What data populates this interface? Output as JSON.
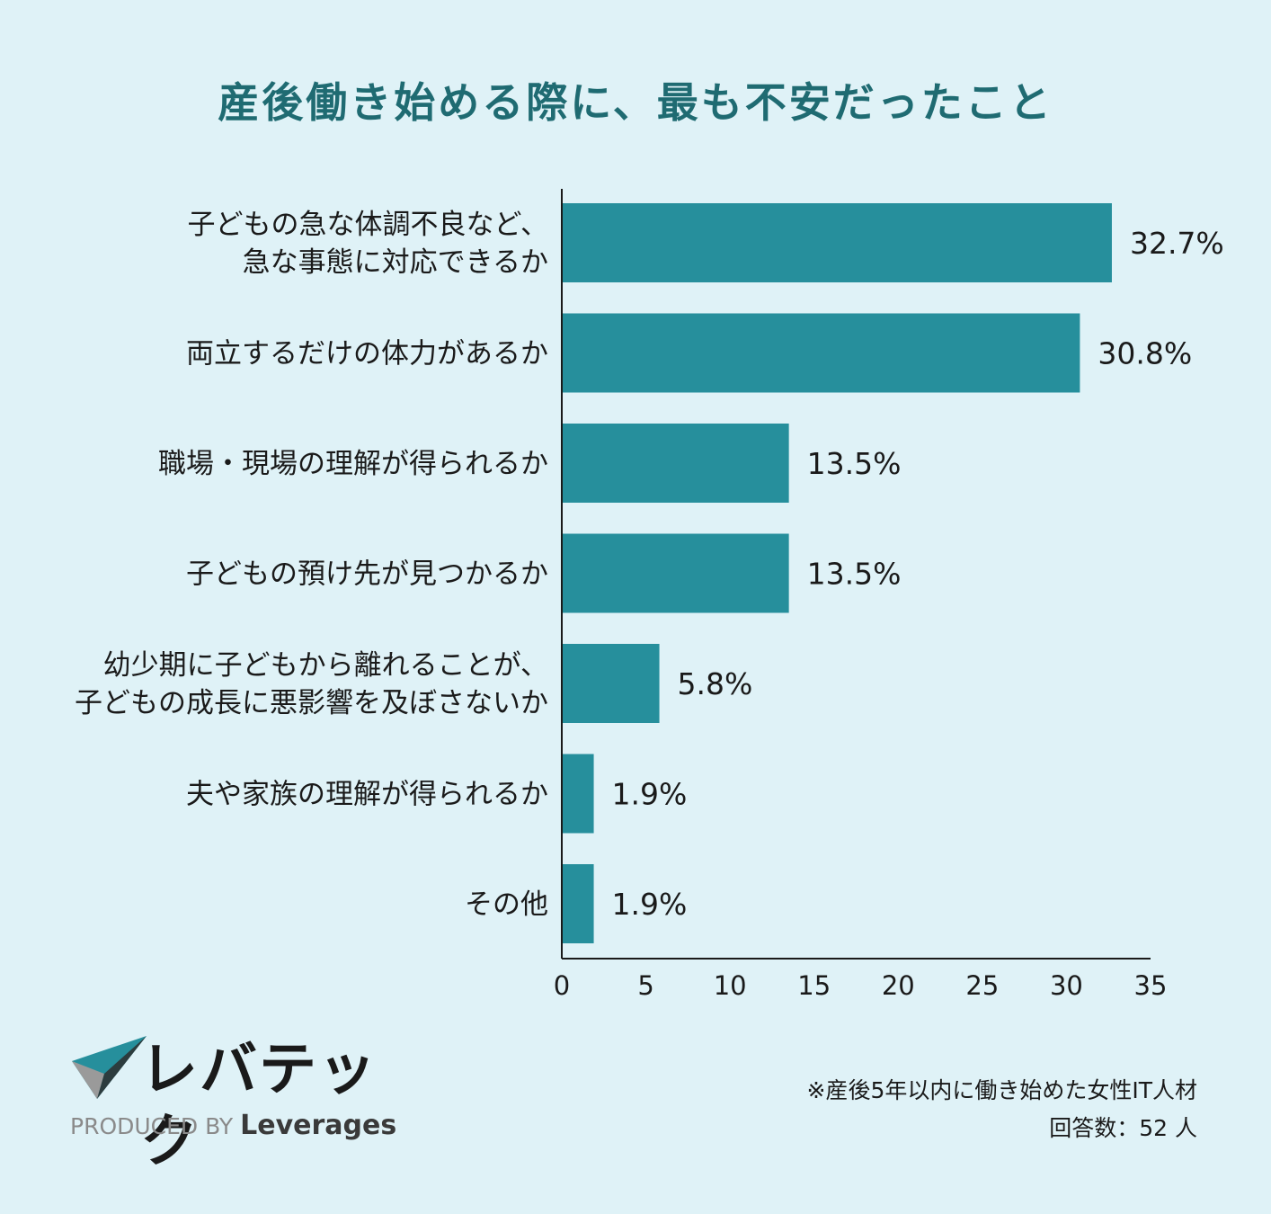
{
  "title": "産後働き始める際に、最も不安だったこと",
  "chart_data": {
    "type": "bar",
    "orientation": "horizontal",
    "categories": [
      [
        "子どもの急な体調不良など、",
        "急な事態に対応できるか"
      ],
      [
        "両立するだけの体力があるか"
      ],
      [
        "職場・現場の理解が得られるか"
      ],
      [
        "子どもの預け先が見つかるか"
      ],
      [
        "幼少期に子どもから離れることが、",
        "子どもの成長に悪影響を及ぼさないか"
      ],
      [
        "夫や家族の理解が得られるか"
      ],
      [
        "その他"
      ]
    ],
    "values": [
      32.7,
      30.8,
      13.5,
      13.5,
      5.8,
      1.9,
      1.9
    ],
    "value_labels": [
      "32.7%",
      "30.8%",
      "13.5%",
      "13.5%",
      "5.8%",
      "1.9%",
      "1.9%"
    ],
    "xlim": [
      0,
      35
    ],
    "xticks": [
      0,
      5,
      10,
      15,
      20,
      25,
      30,
      35
    ],
    "bar_color": "#268f9c",
    "grid": false
  },
  "logo": {
    "name": "レバテック",
    "produced_by": "PRODUCED BY",
    "brand": "Leverages",
    "colors": {
      "teal": "#268f9c",
      "gray": "#9a9a9a",
      "dark": "#2e2e2e"
    }
  },
  "notes": {
    "line1": "※産後5年以内に働き始めた女性IT人材",
    "line2": "回答数：52 人"
  }
}
